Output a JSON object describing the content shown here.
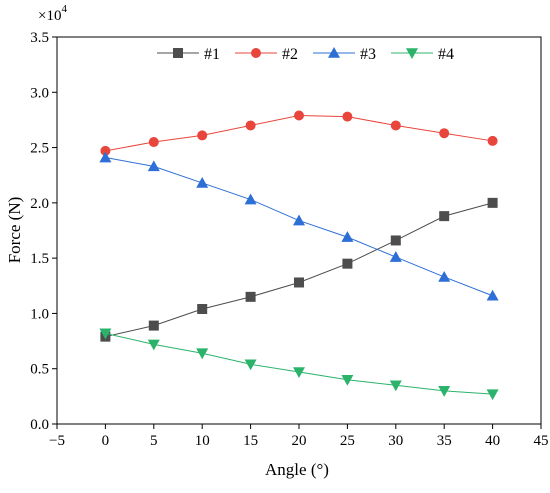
{
  "chart_data": {
    "type": "line",
    "xlabel": "Angle (°)",
    "ylabel": "Force (N)",
    "y_multiplier_label": {
      "base": "×10",
      "exp": "4"
    },
    "xlim": [
      -5,
      45
    ],
    "ylim": [
      0.0,
      3.5
    ],
    "x_ticks": [
      -5,
      0,
      5,
      10,
      15,
      20,
      25,
      30,
      35,
      40,
      45
    ],
    "x_tick_labels": [
      "−5",
      "0",
      "5",
      "10",
      "15",
      "20",
      "25",
      "30",
      "35",
      "40",
      "45"
    ],
    "y_ticks": [
      0.0,
      0.5,
      1.0,
      1.5,
      2.0,
      2.5,
      3.0,
      3.5
    ],
    "y_tick_labels": [
      "0.0",
      "0.5",
      "1.0",
      "1.5",
      "2.0",
      "2.5",
      "3.0",
      "3.5"
    ],
    "grid": false,
    "legend_position": "top",
    "x": [
      0,
      5,
      10,
      15,
      20,
      25,
      30,
      35,
      40
    ],
    "series": [
      {
        "name": "#1",
        "color": "#4d4d4d",
        "marker": "square",
        "values": [
          0.79,
          0.89,
          1.04,
          1.15,
          1.28,
          1.45,
          1.66,
          1.88,
          2.0
        ]
      },
      {
        "name": "#2",
        "color": "#e8463c",
        "marker": "circle",
        "values": [
          2.47,
          2.55,
          2.61,
          2.7,
          2.79,
          2.78,
          2.7,
          2.63,
          2.56
        ]
      },
      {
        "name": "#3",
        "color": "#2d6fd6",
        "marker": "triangle-up",
        "values": [
          2.41,
          2.33,
          2.18,
          2.03,
          1.84,
          1.69,
          1.51,
          1.33,
          1.16
        ]
      },
      {
        "name": "#4",
        "color": "#2bb36b",
        "marker": "triangle-down",
        "values": [
          0.82,
          0.72,
          0.64,
          0.54,
          0.47,
          0.4,
          0.35,
          0.3,
          0.27
        ]
      }
    ]
  }
}
